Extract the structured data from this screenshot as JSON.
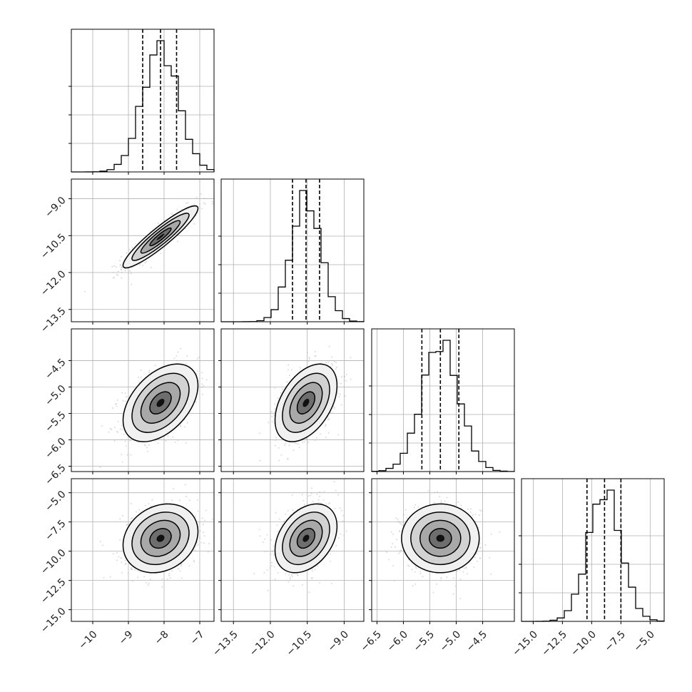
{
  "chart_data": {
    "type": "corner",
    "title": "",
    "params": 4,
    "ranges": [
      [
        -10.6,
        -6.6
      ],
      [
        -14.0,
        -8.2
      ],
      [
        -6.6,
        -3.9
      ],
      [
        -16.0,
        -3.8
      ]
    ],
    "ticks": [
      [
        -10,
        -9,
        -8,
        -7
      ],
      [
        -13.5,
        -12.0,
        -10.5,
        -9.0
      ],
      [
        -6.5,
        -6.0,
        -5.5,
        -5.0,
        -4.5
      ],
      [
        -15.0,
        -12.5,
        -10.0,
        -7.5,
        -5.0
      ]
    ],
    "tick_labels": [
      [
        "−10",
        "−9",
        "−8",
        "−7"
      ],
      [
        "−13.5",
        "−12.0",
        "−10.5",
        "−9.0"
      ],
      [
        "−6.5",
        "−6.0",
        "−5.5",
        "−5.0",
        "−4.5"
      ],
      [
        "−15.0",
        "−12.5",
        "−10.0",
        "−7.5",
        "−5.0"
      ]
    ],
    "means": [
      -8.1,
      -10.55,
      -5.3,
      -8.9
    ],
    "sigmas": [
      0.5,
      0.6,
      0.35,
      1.4
    ],
    "quantiles": [
      [
        -8.6,
        -8.1,
        -7.65
      ],
      [
        -11.1,
        -10.55,
        -10.0
      ],
      [
        -5.65,
        -5.3,
        -4.95
      ],
      [
        -10.4,
        -8.9,
        -7.5
      ]
    ],
    "correlations": {
      "1_0": 0.92,
      "2_0": 0.45,
      "2_1": 0.45,
      "3_0": 0.2,
      "3_1": 0.35,
      "3_2": 0.0
    },
    "grid": true,
    "legend": "none"
  },
  "style": {
    "line_color": "#000000",
    "scatter_color": "#bbbbbb",
    "grid_color": "#b0b0b0"
  }
}
